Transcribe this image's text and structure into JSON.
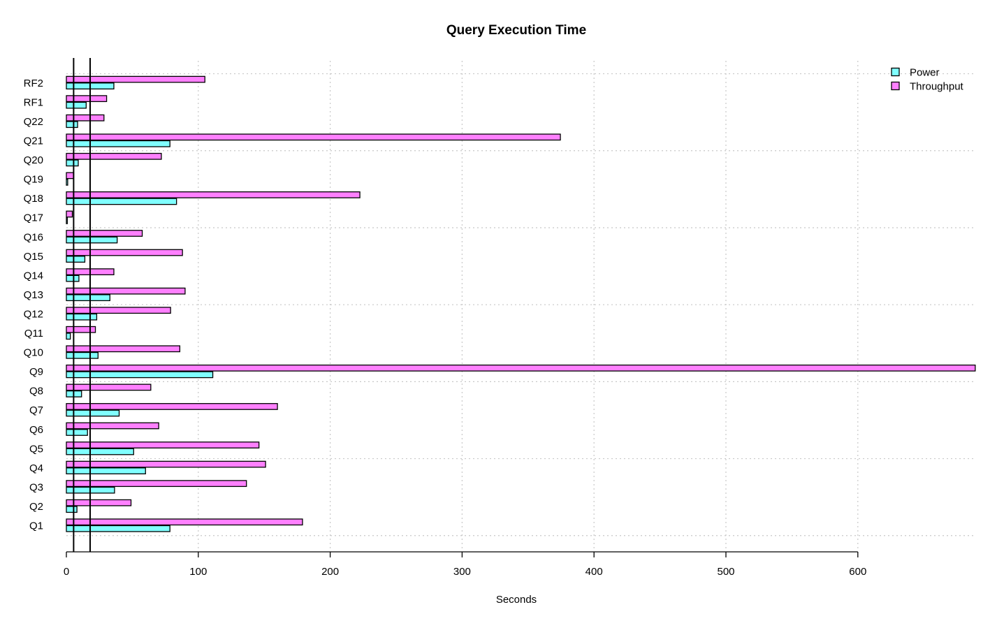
{
  "chart_data": {
    "type": "bar",
    "orientation": "horizontal",
    "title": "Query Execution Time",
    "xlabel": "Seconds",
    "ylabel": "",
    "xlim": [
      0,
      690
    ],
    "x_ticks": [
      0,
      100,
      200,
      300,
      400,
      500,
      600
    ],
    "grid": true,
    "legend_position": "top-right",
    "reference_lines": [
      5.5,
      18
    ],
    "categories": [
      "Q1",
      "Q2",
      "Q3",
      "Q4",
      "Q5",
      "Q6",
      "Q7",
      "Q8",
      "Q9",
      "Q10",
      "Q11",
      "Q12",
      "Q13",
      "Q14",
      "Q15",
      "Q16",
      "Q17",
      "Q18",
      "Q19",
      "Q20",
      "Q21",
      "Q22",
      "RF1",
      "RF2"
    ],
    "series": [
      {
        "name": "Power",
        "color": "#80FFFF",
        "values": [
          78.5,
          8,
          36.5,
          60,
          51,
          16,
          40,
          11.5,
          111,
          24,
          3,
          23,
          33,
          9.5,
          14,
          38.5,
          0.7,
          83.5,
          1,
          9,
          78.5,
          8.5,
          15,
          36
        ]
      },
      {
        "name": "Throughput",
        "color": "#FF80FF",
        "values": [
          179,
          49,
          136.5,
          151,
          146,
          70,
          160,
          64,
          689,
          86,
          22,
          79,
          90,
          36,
          88,
          57.5,
          4.5,
          222.5,
          5.5,
          72,
          374.5,
          28.5,
          30.5,
          105
        ]
      }
    ]
  }
}
